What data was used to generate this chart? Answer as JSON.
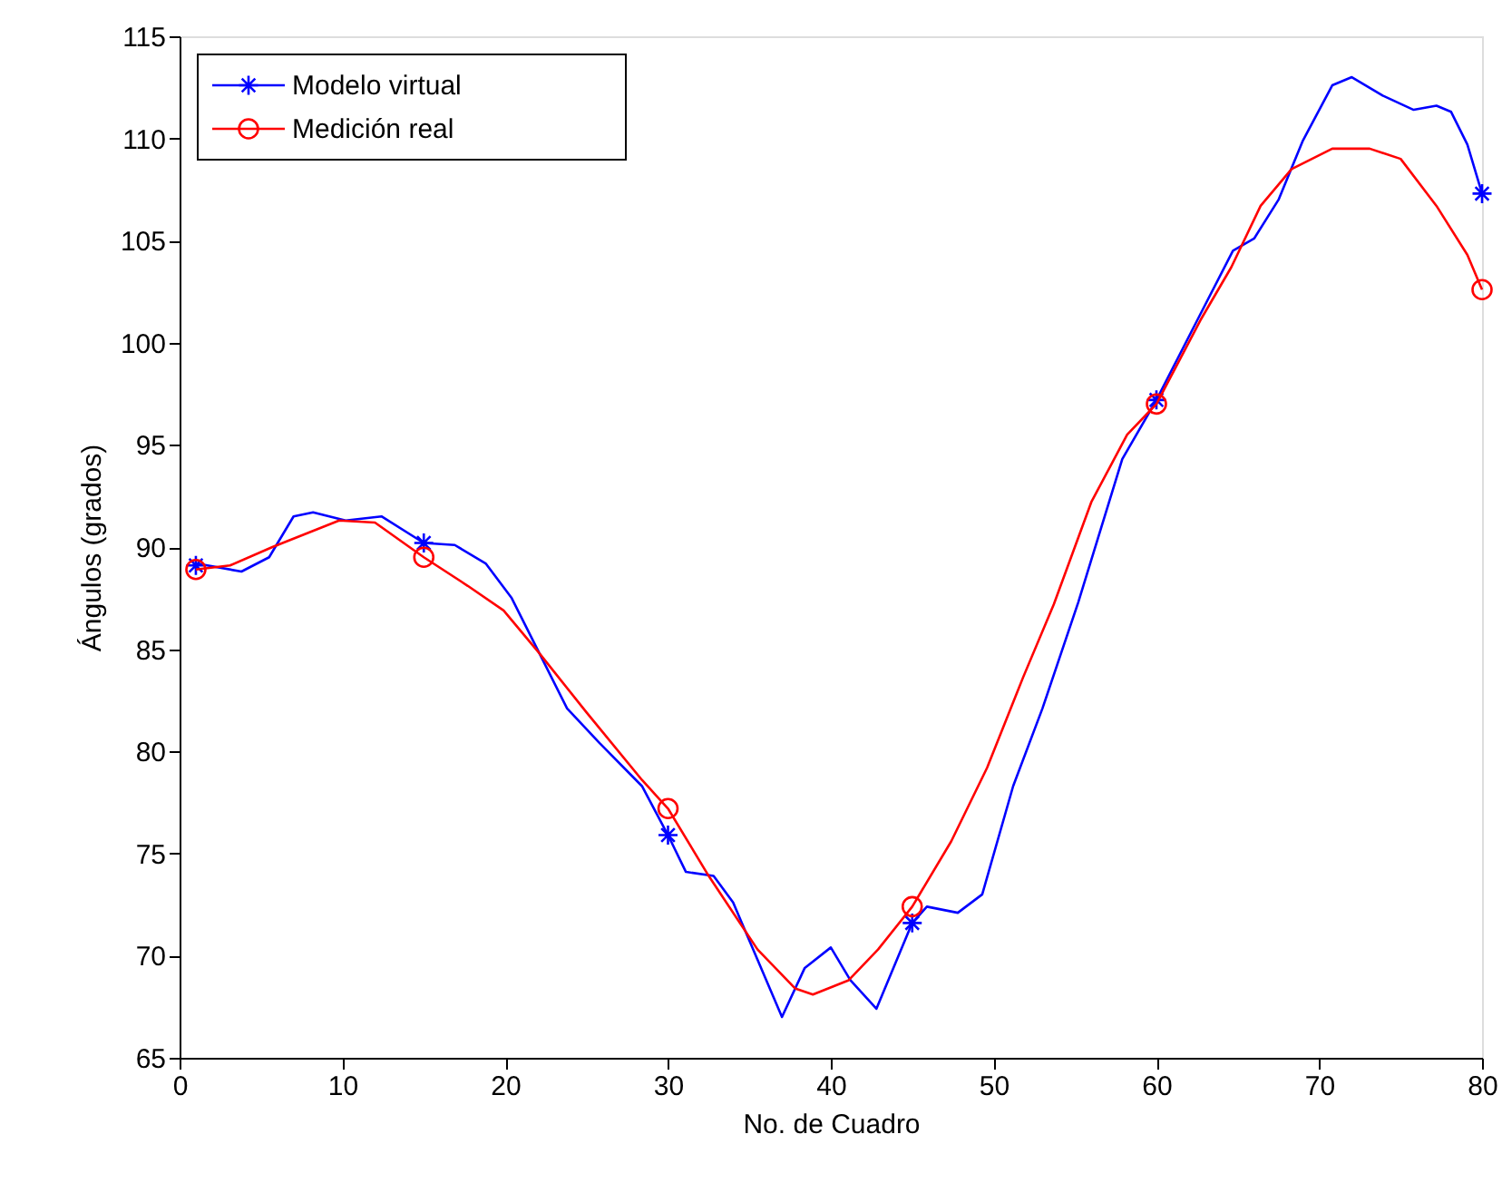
{
  "chart_data": {
    "type": "line",
    "xlabel": "No. de Cuadro",
    "ylabel": "Ángulos (grados)",
    "xlim": [
      0,
      80
    ],
    "xticks": [
      0,
      10,
      20,
      30,
      40,
      50,
      60,
      70,
      80
    ],
    "ylim": [
      65,
      115
    ],
    "yticks": [
      65,
      70,
      75,
      80,
      85,
      90,
      95,
      100,
      105,
      110,
      115
    ],
    "grid": false,
    "legend": "top left",
    "line_style": "solid",
    "series": [
      {
        "name": "Modelo virtual",
        "color": "#0000ff",
        "marker": "none",
        "x": [
          1,
          3.8,
          5.5,
          7,
          8.2,
          10.2,
          12.4,
          15,
          16.9,
          18.8,
          20.4,
          22.1,
          23.8,
          25.8,
          28.4,
          30,
          31.1,
          32.8,
          34,
          37,
          38.4,
          40,
          41.2,
          42.8,
          45,
          45.9,
          47.8,
          49.3,
          51.2,
          53,
          55.2,
          57.9,
          60,
          62.7,
          64.7,
          66,
          67.5,
          69,
          70.8,
          72,
          73.9,
          75.8,
          77.2,
          78.1,
          79.1,
          80
        ],
        "values": [
          89.2,
          88.8,
          89.5,
          91.5,
          91.7,
          91.3,
          91.5,
          90.2,
          90.1,
          89.2,
          87.5,
          84.8,
          82.1,
          80.4,
          78.3,
          75.9,
          74.1,
          73.9,
          72.6,
          67.0,
          69.4,
          70.4,
          68.8,
          67.4,
          71.6,
          72.4,
          72.1,
          73,
          78.3,
          82.1,
          87.3,
          94.3,
          97.2,
          101.4,
          104.5,
          105.1,
          107,
          109.9,
          112.6,
          113,
          112.1,
          111.4,
          111.6,
          111.3,
          109.7,
          107.3
        ]
      },
      {
        "type": "scatter",
        "color": "#0000ff",
        "marker": "cross",
        "x": [
          1,
          15,
          30,
          45,
          60,
          80
        ],
        "values": [
          89.1,
          90.2,
          75.9,
          71.6,
          97.2,
          107.3
        ]
      },
      {
        "name": "Medición real",
        "color": "#ff0000",
        "marker": "none",
        "x": [
          1,
          3.1,
          5.7,
          9.8,
          12,
          15,
          17.7,
          19.9,
          22.1,
          25,
          28.4,
          30,
          32.5,
          35.5,
          37.8,
          38.9,
          41.1,
          42.9,
          45,
          47.4,
          49.6,
          51.8,
          53.7,
          56,
          58.2,
          60,
          62.7,
          64.6,
          66.4,
          68.3,
          70.8,
          73.1,
          75,
          77.2,
          79.1,
          80
        ],
        "values": [
          88.9,
          89.1,
          90,
          91.3,
          91.2,
          89.5,
          88.1,
          86.9,
          84.8,
          81.9,
          78.6,
          77.2,
          73.9,
          70.3,
          68.4,
          68.1,
          68.8,
          70.3,
          72.4,
          75.6,
          79.2,
          83.6,
          87.2,
          92.2,
          95.5,
          97,
          101.1,
          103.7,
          106.7,
          108.5,
          109.5,
          109.5,
          109,
          106.7,
          104.3,
          102.6
        ]
      },
      {
        "type": "scatter",
        "color": "#ff0000",
        "marker": "circle",
        "x": [
          1,
          15,
          30,
          45,
          60,
          80
        ],
        "values": [
          88.9,
          89.5,
          77.2,
          72.4,
          97,
          102.6
        ]
      }
    ]
  }
}
